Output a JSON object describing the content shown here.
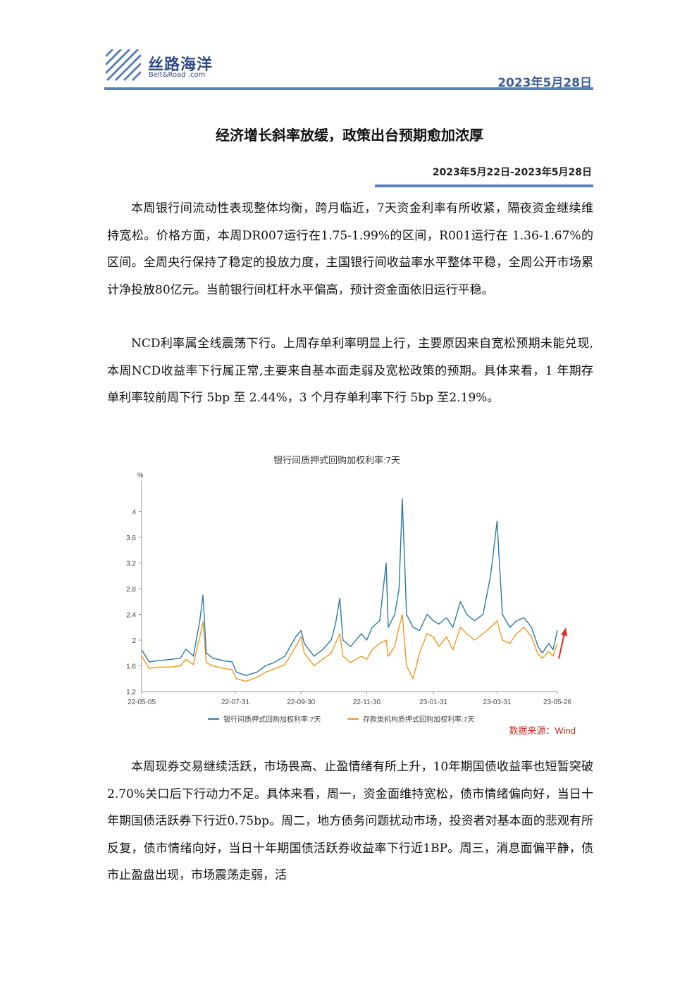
{
  "header": {
    "logo_cn": "丝路海洋",
    "logo_en": "Belt&Road .com",
    "date": "2023年5月28日"
  },
  "title": "经济增长斜率放缓，政策出台预期愈加浓厚",
  "period": "2023年5月22日-2023年5月28日",
  "paragraphs": [
    "本周银行间流动性表现整体均衡，跨月临近，7天资金利率有所收紧，隔夜资金继续维持宽松。价格方面，本周DR007运行在1.75-1.99%的区间，R001运行在 1.36-1.67%的区间。全周央行保持了稳定的投放力度，主国银行间收益率水平整体平稳，全周公开市场累计净投放80亿元。当前银行间杠杆水平偏高，预计资金面依旧运行平稳。",
    "NCD利率属全线震荡下行。上周存单利率明显上行，主要原因来自宽松预期未能兑现,本周NCD收益率下行属正常,主要来自基本面走弱及宽松政策的预期。具体来看，1 年期存单利率较前周下行 5bp 至 2.44%，3 个月存单利率下行 5bp 至2.19%。",
    "本周现券交易继续活跃，市场畏高、止盈情绪有所上升，10年期国债收益率也短暂突破2.70%关口后下行动力不足。具体来看，周一，资金面维持宽松，债市情绪偏向好，当日十年期国债活跃券下行近0.75bp。周二，地方债务问题扰动市场，投资者对基本面的悲观有所反复，债市情绪向好，当日十年期国债活跃券收益率下行近1BP。周三，消息面偏平静，债市止盈盘出现，市场震荡走弱，活"
  ],
  "chart_data": {
    "type": "line",
    "title": "银行间质押式回购加权利率:7天",
    "ylabel": "%",
    "ylim": [
      1.2,
      4.4
    ],
    "yticks": [
      1.2,
      1.6,
      2,
      2.4,
      2.8,
      3.2,
      3.6,
      4
    ],
    "xlim": [
      "2022-05-05",
      "2023-05-26"
    ],
    "xticks": [
      "22-05-05",
      "22-07-31",
      "22-09-30",
      "22-11-30",
      "23-01-31",
      "23-03-31",
      "23-05-26"
    ],
    "grid": false,
    "legend": "bottom",
    "source": "数据来源：Wind",
    "annotation": "red upward arrow at latest point",
    "series": [
      {
        "name": "银行间质押式回购加权利率:7天",
        "color": "#2b78a8",
        "points": [
          [
            "2022-05-05",
            1.85
          ],
          [
            "2022-05-12",
            1.66
          ],
          [
            "2022-05-20",
            1.68
          ],
          [
            "2022-06-01",
            1.7
          ],
          [
            "2022-06-10",
            1.72
          ],
          [
            "2022-06-15",
            1.86
          ],
          [
            "2022-06-22",
            1.75
          ],
          [
            "2022-06-28",
            2.3
          ],
          [
            "2022-07-01",
            2.7
          ],
          [
            "2022-07-04",
            1.8
          ],
          [
            "2022-07-10",
            1.72
          ],
          [
            "2022-07-20",
            1.68
          ],
          [
            "2022-07-28",
            1.66
          ],
          [
            "2022-08-01",
            1.5
          ],
          [
            "2022-08-10",
            1.45
          ],
          [
            "2022-08-20",
            1.5
          ],
          [
            "2022-08-28",
            1.6
          ],
          [
            "2022-09-05",
            1.65
          ],
          [
            "2022-09-15",
            1.75
          ],
          [
            "2022-09-25",
            2.05
          ],
          [
            "2022-09-30",
            2.15
          ],
          [
            "2022-10-03",
            1.95
          ],
          [
            "2022-10-12",
            1.75
          ],
          [
            "2022-10-20",
            1.85
          ],
          [
            "2022-10-28",
            2.0
          ],
          [
            "2022-11-01",
            2.25
          ],
          [
            "2022-11-05",
            2.65
          ],
          [
            "2022-11-08",
            2.0
          ],
          [
            "2022-11-15",
            1.9
          ],
          [
            "2022-11-25",
            2.1
          ],
          [
            "2022-11-30",
            2.0
          ],
          [
            "2022-12-05",
            2.2
          ],
          [
            "2022-12-12",
            2.3
          ],
          [
            "2022-12-18",
            3.2
          ],
          [
            "2022-12-20",
            2.2
          ],
          [
            "2022-12-26",
            2.4
          ],
          [
            "2022-12-30",
            2.8
          ],
          [
            "2023-01-02",
            4.2
          ],
          [
            "2023-01-06",
            2.4
          ],
          [
            "2023-01-12",
            2.2
          ],
          [
            "2023-01-18",
            2.15
          ],
          [
            "2023-01-25",
            2.4
          ],
          [
            "2023-01-31",
            2.3
          ],
          [
            "2023-02-05",
            2.25
          ],
          [
            "2023-02-12",
            2.35
          ],
          [
            "2023-02-18",
            2.2
          ],
          [
            "2023-02-25",
            2.6
          ],
          [
            "2023-03-03",
            2.4
          ],
          [
            "2023-03-10",
            2.3
          ],
          [
            "2023-03-18",
            2.4
          ],
          [
            "2023-03-25",
            3.0
          ],
          [
            "2023-03-31",
            3.85
          ],
          [
            "2023-04-05",
            2.4
          ],
          [
            "2023-04-12",
            2.2
          ],
          [
            "2023-04-18",
            2.3
          ],
          [
            "2023-04-25",
            2.35
          ],
          [
            "2023-05-02",
            2.2
          ],
          [
            "2023-05-08",
            1.9
          ],
          [
            "2023-05-12",
            1.8
          ],
          [
            "2023-05-18",
            1.95
          ],
          [
            "2023-05-22",
            1.85
          ],
          [
            "2023-05-26",
            2.15
          ]
        ]
      },
      {
        "name": "存款类机构质押式回购加权利率:7天",
        "color": "#f0961e",
        "points": [
          [
            "2022-05-05",
            1.75
          ],
          [
            "2022-05-12",
            1.56
          ],
          [
            "2022-05-20",
            1.58
          ],
          [
            "2022-06-01",
            1.58
          ],
          [
            "2022-06-10",
            1.6
          ],
          [
            "2022-06-15",
            1.7
          ],
          [
            "2022-06-22",
            1.62
          ],
          [
            "2022-06-28",
            2.05
          ],
          [
            "2022-07-01",
            2.28
          ],
          [
            "2022-07-04",
            1.65
          ],
          [
            "2022-07-10",
            1.6
          ],
          [
            "2022-07-20",
            1.56
          ],
          [
            "2022-07-28",
            1.54
          ],
          [
            "2022-08-01",
            1.4
          ],
          [
            "2022-08-10",
            1.36
          ],
          [
            "2022-08-20",
            1.42
          ],
          [
            "2022-08-28",
            1.5
          ],
          [
            "2022-09-05",
            1.55
          ],
          [
            "2022-09-15",
            1.62
          ],
          [
            "2022-09-25",
            1.9
          ],
          [
            "2022-09-30",
            2.05
          ],
          [
            "2022-10-03",
            1.8
          ],
          [
            "2022-10-12",
            1.6
          ],
          [
            "2022-10-20",
            1.7
          ],
          [
            "2022-10-28",
            1.8
          ],
          [
            "2022-11-01",
            1.95
          ],
          [
            "2022-11-05",
            2.1
          ],
          [
            "2022-11-08",
            1.75
          ],
          [
            "2022-11-15",
            1.65
          ],
          [
            "2022-11-25",
            1.75
          ],
          [
            "2022-11-30",
            1.7
          ],
          [
            "2022-12-05",
            1.85
          ],
          [
            "2022-12-12",
            1.95
          ],
          [
            "2022-12-18",
            2.0
          ],
          [
            "2022-12-20",
            1.75
          ],
          [
            "2022-12-26",
            1.9
          ],
          [
            "2022-12-30",
            2.2
          ],
          [
            "2023-01-02",
            2.4
          ],
          [
            "2023-01-06",
            1.6
          ],
          [
            "2023-01-12",
            1.4
          ],
          [
            "2023-01-18",
            1.8
          ],
          [
            "2023-01-25",
            2.1
          ],
          [
            "2023-01-31",
            2.05
          ],
          [
            "2023-02-05",
            1.9
          ],
          [
            "2023-02-12",
            2.05
          ],
          [
            "2023-02-18",
            1.85
          ],
          [
            "2023-02-25",
            2.2
          ],
          [
            "2023-03-03",
            2.1
          ],
          [
            "2023-03-10",
            2.0
          ],
          [
            "2023-03-18",
            2.1
          ],
          [
            "2023-03-25",
            2.2
          ],
          [
            "2023-03-31",
            2.3
          ],
          [
            "2023-04-05",
            2.0
          ],
          [
            "2023-04-12",
            1.95
          ],
          [
            "2023-04-18",
            2.1
          ],
          [
            "2023-04-25",
            2.2
          ],
          [
            "2023-05-02",
            2.05
          ],
          [
            "2023-05-08",
            1.78
          ],
          [
            "2023-05-12",
            1.72
          ],
          [
            "2023-05-18",
            1.82
          ],
          [
            "2023-05-22",
            1.75
          ],
          [
            "2023-05-26",
            1.95
          ]
        ]
      }
    ]
  }
}
